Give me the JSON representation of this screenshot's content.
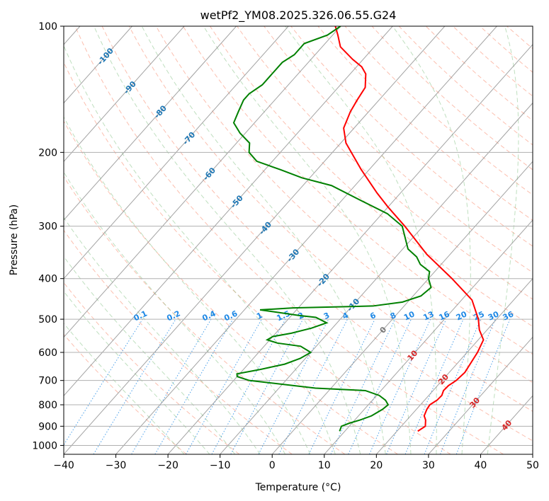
{
  "chart_data": {
    "type": "skew-t",
    "title": "wetPf2_YM08.2025.326.06.55.G24",
    "xlabel": "Temperature (°C)",
    "ylabel": "Pressure (hPa)",
    "xlim": [
      -40,
      50
    ],
    "ylim": [
      1050,
      100
    ],
    "y_scale": "log",
    "grid": true,
    "x_ticks": [
      -40,
      -30,
      -20,
      -10,
      0,
      10,
      20,
      30,
      40,
      50
    ],
    "y_ticks": [
      100,
      200,
      300,
      400,
      500,
      600,
      700,
      800,
      900,
      1000
    ],
    "isotherm_labels": [
      "-100",
      "-90",
      "-80",
      "-70",
      "-60",
      "-50",
      "-40",
      "-30",
      "-20",
      "-10",
      "0",
      "10",
      "20",
      "30",
      "40"
    ],
    "mixing_ratio_labels": [
      "0.1",
      "0.2",
      "0.4",
      "0.6",
      "1",
      "1.5",
      "2",
      "3",
      "4",
      "6",
      "8",
      "10",
      "13",
      "16",
      "20",
      "25",
      "30",
      "36"
    ],
    "colors": {
      "temperature": "#ff0000",
      "dewpoint": "#008000",
      "isotherms": "#8c8c8c",
      "dry_adiabats": "#fa8060",
      "moist_adiabats": "#7fbf7f",
      "mixing_ratio": "#1e88e5",
      "reference_curve": "#d2b48c"
    },
    "series": [
      {
        "name": "",
        "role": "temperature",
        "points": [
          [
            1000,
            null
          ],
          [
            925,
            24.0
          ],
          [
            900,
            24.6
          ],
          [
            870,
            23.6
          ],
          [
            850,
            22.6
          ],
          [
            820,
            22.0
          ],
          [
            800,
            21.8
          ],
          [
            780,
            22.4
          ],
          [
            760,
            22.5
          ],
          [
            740,
            22.0
          ],
          [
            720,
            22.1
          ],
          [
            700,
            22.7
          ],
          [
            670,
            23.0
          ],
          [
            600,
            22.0
          ],
          [
            560,
            21.0
          ],
          [
            530,
            18.5
          ],
          [
            500,
            16.5
          ],
          [
            450,
            12.0
          ],
          [
            400,
            4.5
          ],
          [
            350,
            -4.5
          ],
          [
            300,
            -13.5
          ],
          [
            270,
            -20.0
          ],
          [
            250,
            -24.5
          ],
          [
            220,
            -31.5
          ],
          [
            190,
            -39.0
          ],
          [
            175,
            -42.0
          ],
          [
            160,
            -43.5
          ],
          [
            150,
            -44.2
          ],
          [
            140,
            -44.8
          ],
          [
            130,
            -47.0
          ],
          [
            125,
            -49.0
          ],
          [
            120,
            -52.0
          ],
          [
            112,
            -56.5
          ],
          [
            105,
            -59.0
          ],
          [
            100,
            -61.0
          ]
        ]
      },
      {
        "name": "",
        "role": "dewpoint",
        "points": [
          [
            925,
            9.0
          ],
          [
            900,
            8.5
          ],
          [
            885,
            9.5
          ],
          [
            870,
            11.0
          ],
          [
            850,
            12.5
          ],
          [
            820,
            13.5
          ],
          [
            800,
            13.8
          ],
          [
            780,
            12.5
          ],
          [
            760,
            10.5
          ],
          [
            740,
            7.0
          ],
          [
            730,
            -3.0
          ],
          [
            700,
            -17.0
          ],
          [
            685,
            -20.0
          ],
          [
            675,
            -20.5
          ],
          [
            660,
            -17.0
          ],
          [
            640,
            -13.0
          ],
          [
            620,
            -11.0
          ],
          [
            600,
            -10.0
          ],
          [
            580,
            -13.0
          ],
          [
            570,
            -18.0
          ],
          [
            560,
            -20.5
          ],
          [
            550,
            -20.0
          ],
          [
            540,
            -17.0
          ],
          [
            525,
            -14.0
          ],
          [
            510,
            -12.0
          ],
          [
            495,
            -15.0
          ],
          [
            490,
            -18.5
          ],
          [
            480,
            -24.0
          ],
          [
            475,
            -27.0
          ],
          [
            470,
            -21.0
          ],
          [
            465,
            -6.0
          ],
          [
            455,
            -1.0
          ],
          [
            440,
            1.5
          ],
          [
            420,
            2.0
          ],
          [
            400,
            0.0
          ],
          [
            385,
            -1.0
          ],
          [
            370,
            -4.0
          ],
          [
            355,
            -6.0
          ],
          [
            340,
            -9.0
          ],
          [
            300,
            -14.0
          ],
          [
            280,
            -19.0
          ],
          [
            260,
            -26.5
          ],
          [
            240,
            -34.5
          ],
          [
            230,
            -41.5
          ],
          [
            220,
            -47.0
          ],
          [
            210,
            -53.0
          ],
          [
            200,
            -56.0
          ],
          [
            190,
            -57.5
          ],
          [
            180,
            -61.0
          ],
          [
            170,
            -64.0
          ],
          [
            160,
            -65.0
          ],
          [
            150,
            -66.0
          ],
          [
            145,
            -66.0
          ],
          [
            138,
            -65.0
          ],
          [
            130,
            -65.0
          ],
          [
            122,
            -65.0
          ],
          [
            117,
            -64.0
          ],
          [
            110,
            -64.0
          ],
          [
            105,
            -61.0
          ],
          [
            100,
            -60.0
          ]
        ]
      }
    ]
  }
}
